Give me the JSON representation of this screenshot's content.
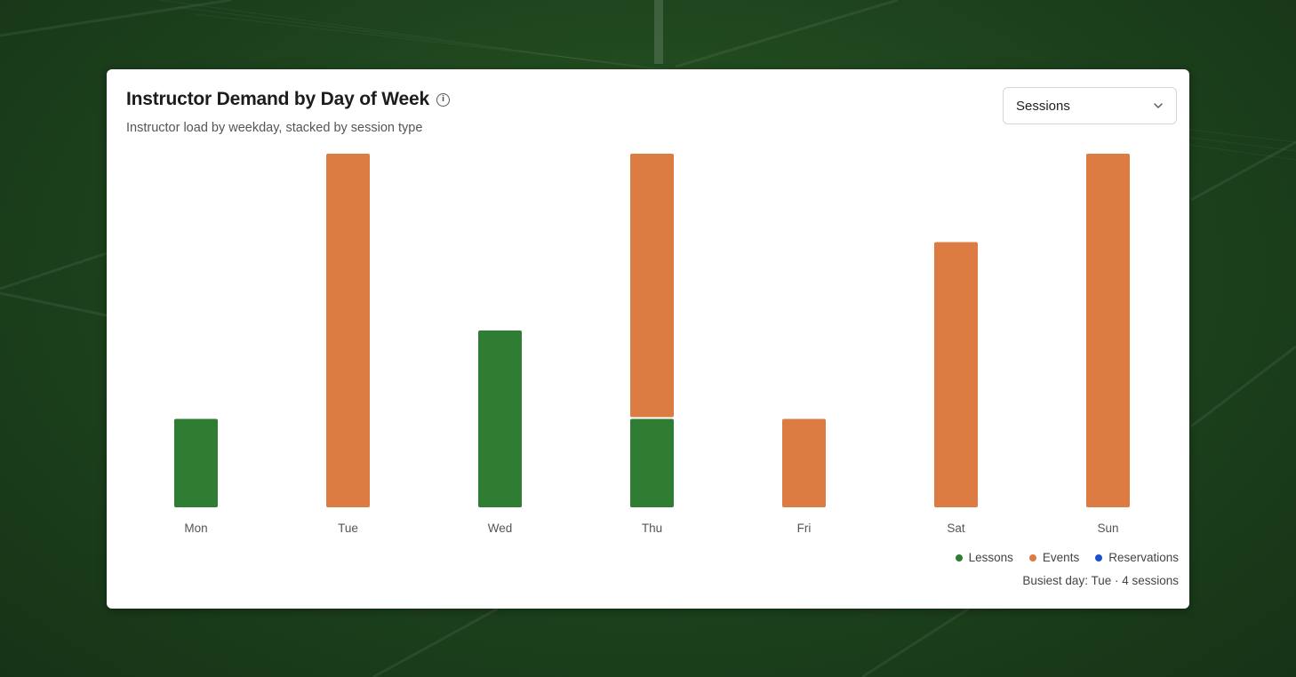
{
  "card": {
    "title": "Instructor Demand by Day of Week",
    "info_icon": "info-circle-icon",
    "subtitle": "Instructor load by weekday, stacked by session type"
  },
  "metric_select": {
    "value": "Sessions",
    "icon": "chevron-down-icon"
  },
  "legend": [
    {
      "label": "Lessons",
      "color": "#2e7d32"
    },
    {
      "label": "Events",
      "color": "#dc7b42"
    },
    {
      "label": "Reservations",
      "color": "#1a4fd6"
    }
  ],
  "footnote": "Busiest day: Tue · 4 sessions",
  "chart_data": {
    "type": "bar",
    "stacked": true,
    "categories": [
      "Mon",
      "Tue",
      "Wed",
      "Thu",
      "Fri",
      "Sat",
      "Sun"
    ],
    "series": [
      {
        "name": "Lessons",
        "color": "#2e7d32",
        "values": [
          1,
          0,
          2,
          1,
          0,
          0,
          0
        ]
      },
      {
        "name": "Events",
        "color": "#dc7b42",
        "values": [
          0,
          4,
          0,
          3,
          1,
          3,
          4
        ]
      },
      {
        "name": "Reservations",
        "color": "#1a4fd6",
        "values": [
          0,
          0,
          0,
          0,
          0,
          0,
          0
        ]
      }
    ],
    "ylim": [
      0,
      4
    ],
    "grid": false,
    "legend_position": "bottom-right"
  }
}
